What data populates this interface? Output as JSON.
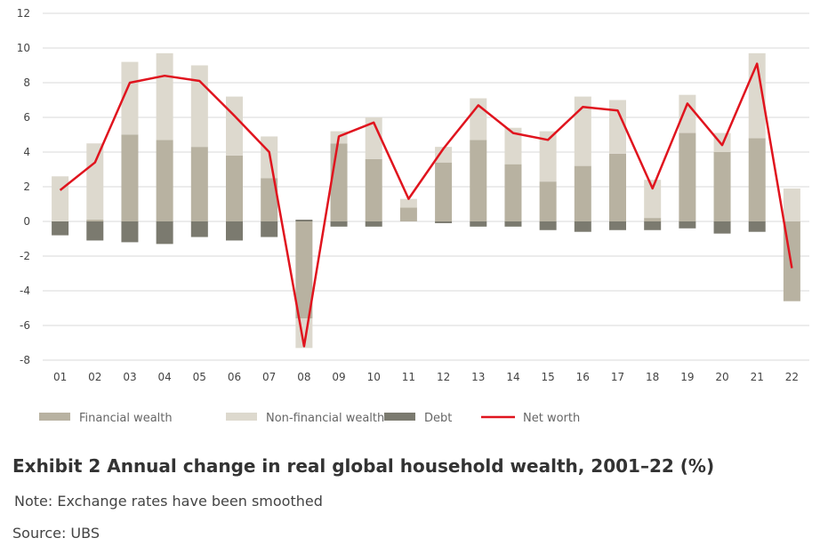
{
  "chart_data": {
    "type": "bar",
    "stacked": true,
    "categories": [
      "01",
      "02",
      "03",
      "04",
      "05",
      "06",
      "07",
      "08",
      "09",
      "10",
      "11",
      "12",
      "13",
      "14",
      "15",
      "16",
      "17",
      "18",
      "19",
      "20",
      "21",
      "22"
    ],
    "series": [
      {
        "name": "Financial wealth",
        "kind": "bar",
        "color": "#b8b2a1",
        "values": [
          0,
          0.1,
          5.0,
          4.7,
          4.3,
          3.8,
          2.5,
          -5.6,
          4.5,
          3.6,
          0.8,
          3.4,
          4.7,
          3.3,
          2.3,
          3.2,
          3.9,
          0.2,
          5.1,
          4.0,
          4.8,
          -4.6
        ]
      },
      {
        "name": "Non-financial wealth",
        "kind": "bar",
        "color": "#ddd9ce",
        "values": [
          2.6,
          4.4,
          4.2,
          5.0,
          4.7,
          3.4,
          2.4,
          -1.7,
          0.7,
          2.4,
          0.5,
          0.9,
          2.4,
          2.1,
          2.9,
          4.0,
          3.1,
          2.2,
          2.2,
          1.1,
          4.9,
          1.9
        ]
      },
      {
        "name": "Debt",
        "kind": "bar",
        "color": "#7b7a6f",
        "values": [
          -0.8,
          -1.1,
          -1.2,
          -1.3,
          -0.9,
          -1.1,
          -0.9,
          0.1,
          -0.3,
          -0.3,
          0.0,
          -0.1,
          -0.3,
          -0.3,
          -0.5,
          -0.6,
          -0.5,
          -0.5,
          -0.4,
          -0.7,
          -0.6,
          0.0
        ]
      },
      {
        "name": "Net worth",
        "kind": "line",
        "color": "#e0141e",
        "values": [
          1.8,
          3.4,
          8.0,
          8.4,
          8.1,
          6.1,
          4.0,
          -7.2,
          4.9,
          5.7,
          1.3,
          4.2,
          6.7,
          5.1,
          4.7,
          6.6,
          6.4,
          1.9,
          6.8,
          4.4,
          9.1,
          -2.7
        ]
      }
    ],
    "yticks": [
      12,
      10,
      8,
      6,
      4,
      2,
      0,
      -2,
      -4,
      -6,
      -8
    ],
    "ylim": [
      -8,
      12
    ],
    "grid": true,
    "legend_position": "bottom",
    "title": "Exhibit 2 Annual change in real global household wealth, 2001–22 (%)"
  },
  "caption": {
    "title": "Exhibit 2 Annual change in real global household wealth, 2001–22 (%)",
    "note": "Note: Exchange rates have been smoothed",
    "source": "Source: UBS"
  }
}
